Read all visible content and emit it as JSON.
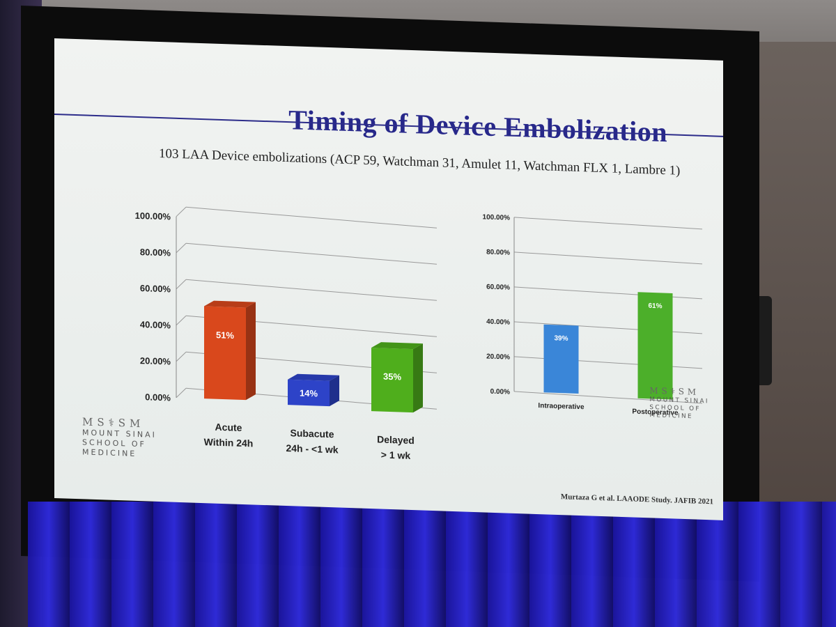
{
  "slide": {
    "title": "Timing of Device Embolization",
    "subtitle": "103 LAA Device embolizations (ACP 59, Watchman 31, Amulet 11, Watchman FLX 1, Lambre 1)",
    "reference": "Murtaza G et al. LAAODE Study. JAFIB 2021",
    "logo_mark": "MS⚕SM",
    "logo_line1": "MOUNT SINAI",
    "logo_line2": "SCHOOL OF",
    "logo_line3": "MEDICINE"
  },
  "chart_data": [
    {
      "type": "bar",
      "categories": [
        [
          "Acute",
          "Within 24h"
        ],
        [
          "Subacute",
          "24h - <1 wk"
        ],
        [
          "Delayed",
          "> 1 wk"
        ]
      ],
      "values": [
        51,
        14,
        35
      ],
      "data_labels": [
        "51%",
        "14%",
        "35%"
      ],
      "colors": [
        "#d9481c",
        "#2d43c8",
        "#4fae1c"
      ],
      "yticks": [
        "0.00%",
        "20.00%",
        "40.00%",
        "60.00%",
        "80.00%",
        "100.00%"
      ],
      "ylim": [
        0,
        100
      ],
      "grid": true,
      "style": "3d"
    },
    {
      "type": "bar",
      "categories": [
        "Intraoperative",
        "Postoperative"
      ],
      "values": [
        39,
        61
      ],
      "data_labels": [
        "39%",
        "61%"
      ],
      "colors": [
        "#3a86d8",
        "#4caf2a"
      ],
      "yticks": [
        "0.00%",
        "20.00%",
        "40.00%",
        "60.00%",
        "80.00%",
        "100.00%"
      ],
      "ylim": [
        0,
        100
      ],
      "grid": true,
      "style": "flat"
    }
  ]
}
